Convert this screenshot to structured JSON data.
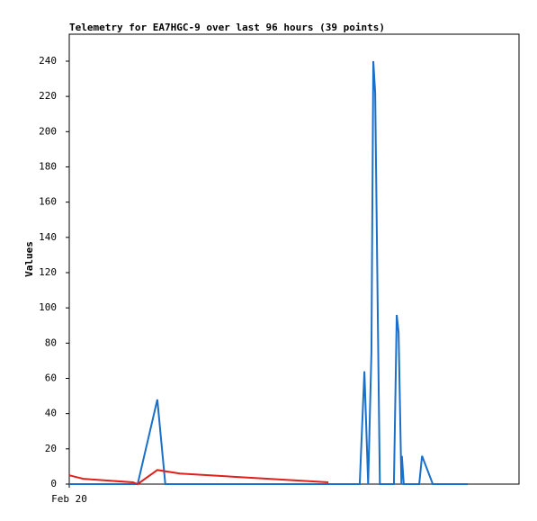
{
  "chart_data": {
    "type": "line",
    "title": "Telemetry for EA7HGC-9 over last 96 hours (39 points)",
    "y_label": "Values",
    "xlim": [
      0,
      96
    ],
    "xticks": [
      {
        "value": 0,
        "label": "Feb 20"
      }
    ],
    "ylim": [
      0,
      255.3
    ],
    "yticks": [
      0,
      20,
      40,
      60,
      80,
      100,
      120,
      140,
      160,
      180,
      200,
      220,
      240
    ],
    "series": [
      {
        "color": "#1a6fc9",
        "x": [
          0,
          14.6,
          18.8,
          20.5,
          62.0,
          63.0,
          63.8,
          64.5,
          64.9,
          65.3,
          65.9,
          66.3,
          69.3,
          69.9,
          70.3,
          70.9,
          71.0,
          71.4,
          74.7,
          75.3,
          77.6,
          85.1
        ],
        "values": [
          0,
          0,
          48,
          0,
          0,
          64,
          0,
          75,
          240,
          222,
          86,
          0,
          0,
          96,
          86,
          0,
          16,
          0,
          0,
          16,
          0,
          0
        ]
      },
      {
        "color": "#e0201b",
        "x": [
          0,
          1.5,
          3.0,
          13.6,
          14.6,
          18.8,
          23.6,
          55.3
        ],
        "values": [
          5,
          4,
          3,
          1,
          0,
          8,
          6,
          1
        ]
      }
    ]
  }
}
